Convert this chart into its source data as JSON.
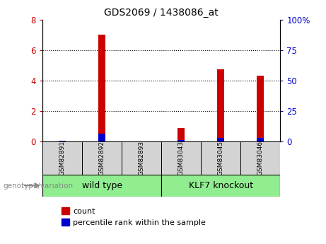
{
  "title": "GDS2069 / 1438086_at",
  "samples": [
    "GSM82891",
    "GSM82892",
    "GSM82893",
    "GSM83043",
    "GSM83045",
    "GSM83046"
  ],
  "count_values": [
    0.02,
    7.0,
    0.02,
    0.9,
    4.75,
    4.3
  ],
  "percentile_values": [
    0.5,
    6.5,
    0.3,
    1.2,
    3.2,
    3.0
  ],
  "groups": [
    {
      "label": "wild type",
      "span": [
        0,
        3
      ],
      "color": "#90ee90"
    },
    {
      "label": "KLF7 knockout",
      "span": [
        3,
        6
      ],
      "color": "#90ee90"
    }
  ],
  "left_ylim": [
    0,
    8
  ],
  "right_ylim": [
    0,
    100
  ],
  "left_yticks": [
    0,
    2,
    4,
    6,
    8
  ],
  "right_yticks": [
    0,
    25,
    50,
    75,
    100
  ],
  "right_yticklabels": [
    "0",
    "25",
    "50",
    "75",
    "100%"
  ],
  "bar_color_count": "#cc0000",
  "bar_color_percentile": "#0000cc",
  "bar_width": 0.18,
  "grid_color": "black",
  "legend_count_label": "count",
  "legend_percentile_label": "percentile rank within the sample",
  "genotype_label": "genotype/variation",
  "background_color": "#ffffff",
  "tick_label_color_left": "#cc0000",
  "tick_label_color_right": "#0000cc"
}
